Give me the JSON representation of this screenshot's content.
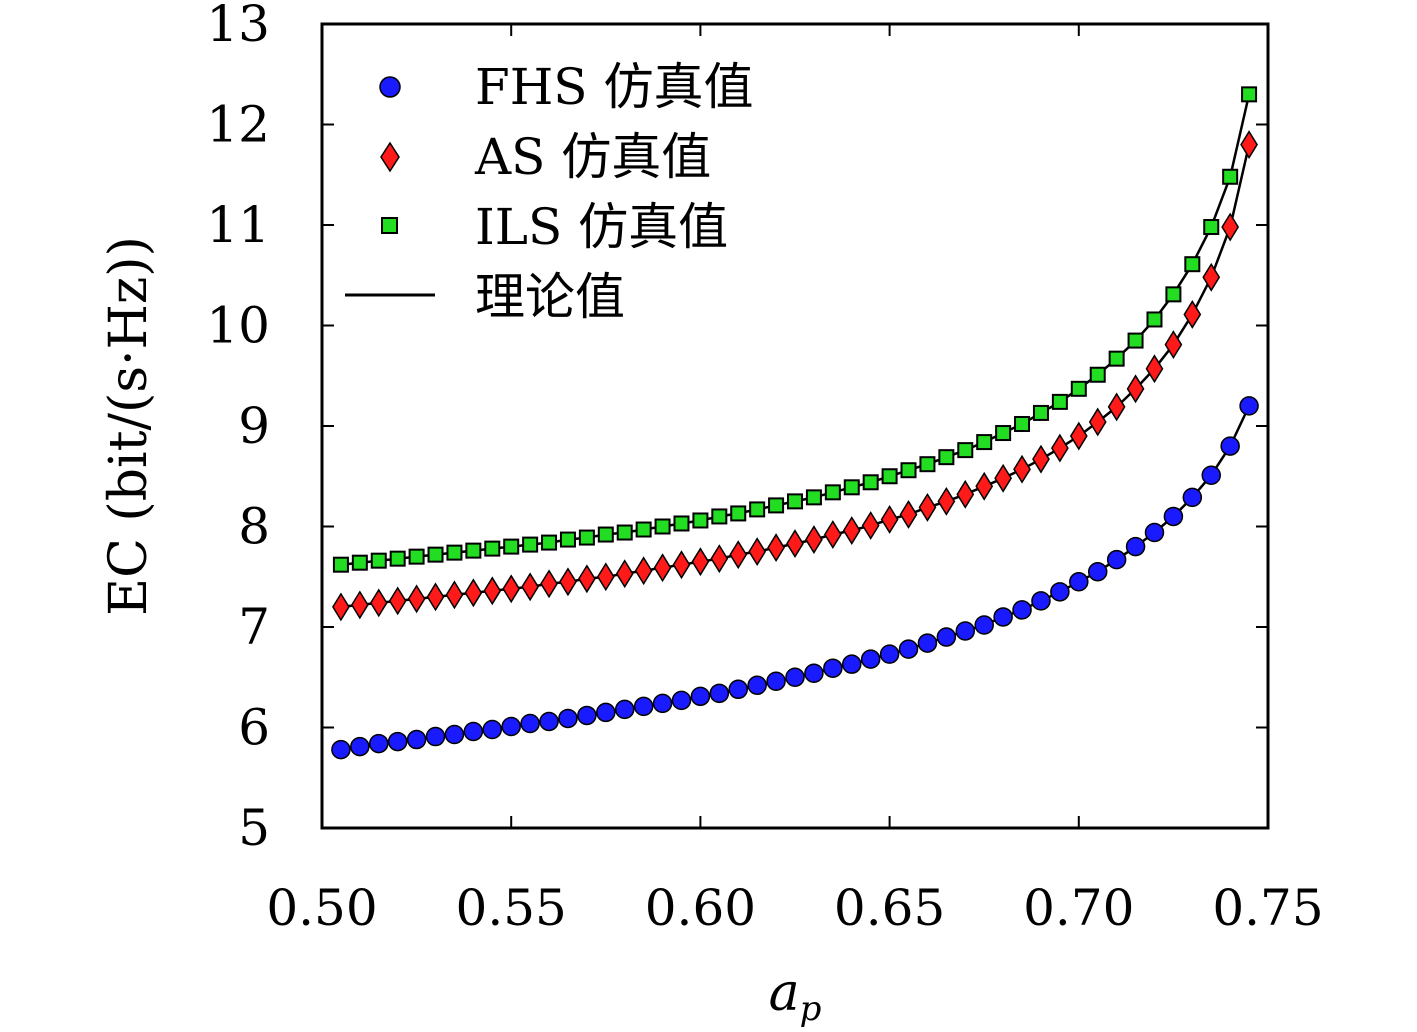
{
  "chart_data": {
    "type": "line",
    "title": "",
    "xlabel": "a",
    "xlabel_sub": "p",
    "ylabel": "EC (bit/(s·Hz))",
    "xlim": [
      0.5,
      0.75
    ],
    "ylim": [
      5,
      13
    ],
    "xticks": [
      "0.50",
      "0.55",
      "0.60",
      "0.65",
      "0.70",
      "0.75"
    ],
    "yticks": [
      "5",
      "6",
      "7",
      "8",
      "9",
      "10",
      "11",
      "12",
      "13"
    ],
    "grid": false,
    "legend_position": "top-left",
    "legend": {
      "fhs": "FHS 仿真值",
      "as": "AS 仿真值",
      "ils": "ILS 仿真值",
      "theory": "理论值"
    },
    "x": [
      0.505,
      0.51,
      0.515,
      0.52,
      0.525,
      0.53,
      0.535,
      0.54,
      0.545,
      0.55,
      0.555,
      0.56,
      0.565,
      0.57,
      0.575,
      0.58,
      0.585,
      0.59,
      0.595,
      0.6,
      0.605,
      0.61,
      0.615,
      0.62,
      0.625,
      0.63,
      0.635,
      0.64,
      0.645,
      0.65,
      0.655,
      0.66,
      0.665,
      0.67,
      0.675,
      0.68,
      0.685,
      0.69,
      0.695,
      0.7,
      0.705,
      0.71,
      0.715,
      0.72,
      0.725,
      0.73,
      0.735,
      0.74,
      0.745
    ],
    "series": [
      {
        "key": "fhs",
        "marker": "circle",
        "color": "#1a1aff",
        "values": [
          5.78,
          5.81,
          5.84,
          5.86,
          5.88,
          5.91,
          5.93,
          5.96,
          5.98,
          6.01,
          6.04,
          6.06,
          6.09,
          6.12,
          6.15,
          6.18,
          6.21,
          6.24,
          6.27,
          6.31,
          6.34,
          6.38,
          6.42,
          6.46,
          6.5,
          6.54,
          6.59,
          6.63,
          6.68,
          6.73,
          6.78,
          6.84,
          6.9,
          6.96,
          7.02,
          7.1,
          7.17,
          7.26,
          7.35,
          7.45,
          7.55,
          7.67,
          7.8,
          7.94,
          8.1,
          8.29,
          8.51,
          8.8,
          9.2
        ]
      },
      {
        "key": "as",
        "marker": "diamond",
        "color": "#ff1a1a",
        "values": [
          7.2,
          7.22,
          7.24,
          7.26,
          7.28,
          7.3,
          7.32,
          7.34,
          7.36,
          7.38,
          7.4,
          7.43,
          7.45,
          7.48,
          7.5,
          7.53,
          7.56,
          7.59,
          7.62,
          7.65,
          7.68,
          7.72,
          7.75,
          7.79,
          7.83,
          7.87,
          7.92,
          7.96,
          8.01,
          8.07,
          8.12,
          8.19,
          8.25,
          8.32,
          8.4,
          8.48,
          8.57,
          8.67,
          8.78,
          8.9,
          9.04,
          9.19,
          9.37,
          9.57,
          9.81,
          10.11,
          10.48,
          10.98,
          11.8
        ]
      },
      {
        "key": "ils",
        "marker": "square",
        "color": "#22dd22",
        "values": [
          7.62,
          7.64,
          7.66,
          7.68,
          7.7,
          7.72,
          7.74,
          7.76,
          7.78,
          7.8,
          7.82,
          7.84,
          7.87,
          7.89,
          7.92,
          7.94,
          7.97,
          8.0,
          8.03,
          8.06,
          8.1,
          8.13,
          8.17,
          8.21,
          8.25,
          8.29,
          8.34,
          8.39,
          8.44,
          8.5,
          8.56,
          8.62,
          8.69,
          8.76,
          8.84,
          8.93,
          9.02,
          9.13,
          9.24,
          9.37,
          9.51,
          9.67,
          9.85,
          10.06,
          10.31,
          10.61,
          10.98,
          11.48,
          12.3
        ]
      }
    ],
    "theory_line_color": "#000000"
  }
}
